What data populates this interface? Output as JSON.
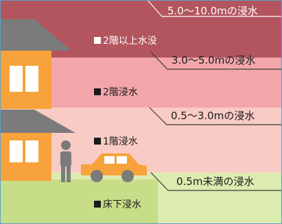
{
  "bands": [
    {
      "range_label": "5.0〜10.0mの浸水",
      "level_label": "2階以上水没"
    },
    {
      "range_label": "3.0〜5.0mの浸水",
      "level_label": "2階浸水"
    },
    {
      "range_label": "0.5〜3.0mの浸水",
      "level_label": "1階浸水"
    },
    {
      "range_label": "0.5m未満の浸水",
      "level_label": "床下浸水"
    }
  ],
  "colors": {
    "band_1": "#b2555e",
    "band_2": "#f3a6aa",
    "band_3": "#f8cbc4",
    "band_4": "#dcebb0",
    "house_wall": "#f7a23a",
    "roof": "#7b7b7b",
    "car": "#f7a23a"
  },
  "icons": [
    "house-icon",
    "person-icon",
    "car-icon"
  ]
}
